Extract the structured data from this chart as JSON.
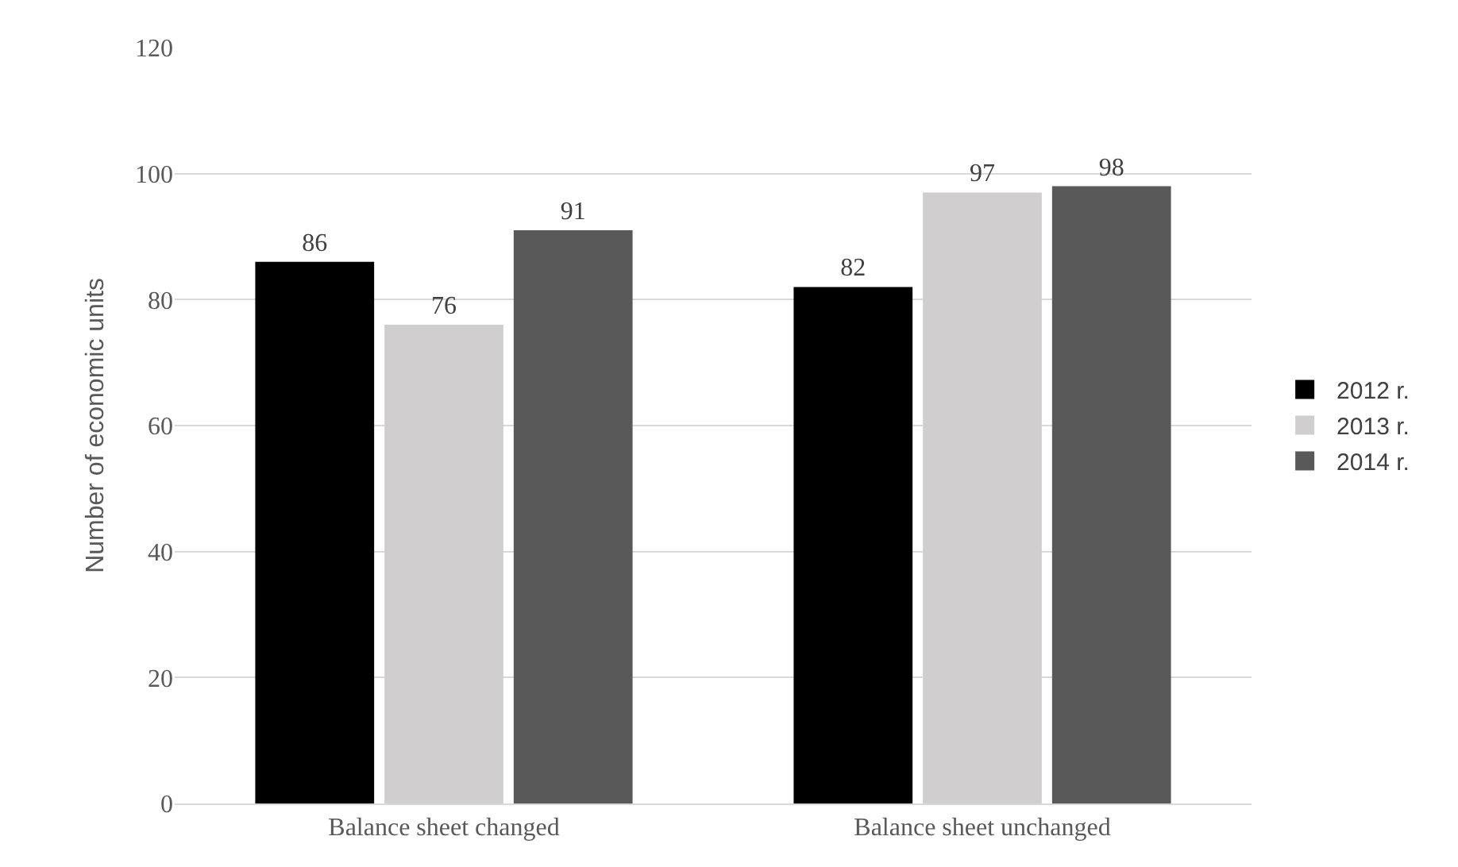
{
  "chart_data": {
    "type": "bar",
    "ylabel": "Number of economic units",
    "categories": [
      "Balance sheet changed",
      "Balance sheet unchanged"
    ],
    "series": [
      {
        "name": "2012 r.",
        "color": "#000000",
        "values": [
          86,
          82
        ]
      },
      {
        "name": "2013 r.",
        "color": "#d0cece",
        "values": [
          76,
          97
        ]
      },
      {
        "name": "2014 r.",
        "color": "#595959",
        "values": [
          91,
          98
        ]
      }
    ],
    "ylim": [
      0,
      120
    ],
    "yticks": [
      0,
      20,
      40,
      60,
      80,
      100,
      120
    ],
    "grid": "y",
    "legend": "right",
    "data_labels": true
  }
}
